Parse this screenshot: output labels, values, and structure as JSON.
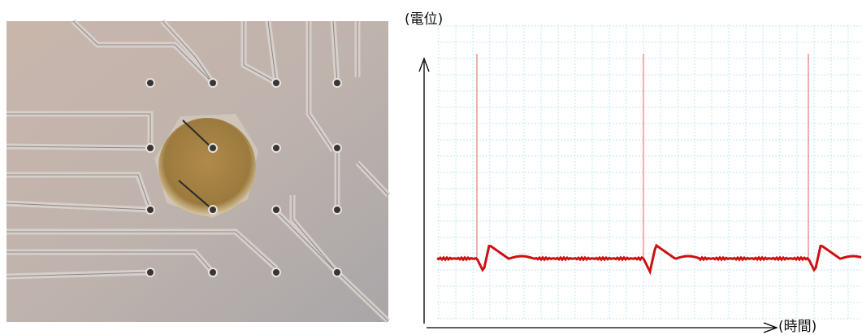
{
  "figure": {
    "y_axis_label": "(電位)",
    "x_axis_label": "(時間)"
  }
}
